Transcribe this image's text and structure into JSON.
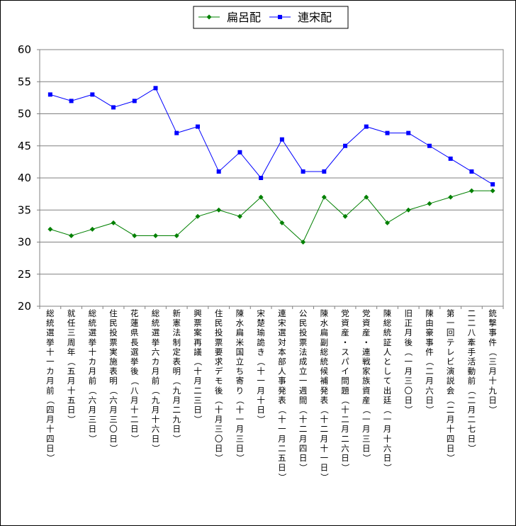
{
  "chart_data": {
    "type": "line",
    "title": "",
    "xlabel": "",
    "ylabel": "",
    "ylim": [
      20,
      60
    ],
    "yticks": [
      20,
      25,
      30,
      35,
      40,
      45,
      50,
      55,
      60
    ],
    "grid": "horizontal",
    "legend": "top",
    "categories": [
      "総統選挙十一カ月前（四月十四日）",
      "就任三周年（五月十五日）",
      "総統選挙十カ月前（六月三日）",
      "住民投票実施表明（六月三〇日）",
      "花蓮県長選挙後（八月十二日）",
      "総統選挙六カ月前（九月十六日）",
      "新憲法制定表明（九月二九日）",
      "興票案再議（十月二三日）",
      "住民投票要求デモ後（十月三〇日）",
      "陳水扁米国立ち寄り（十一月三日）",
      "宋楚瑜詭き（十一月十日）",
      "連宋選対本部人事発表（十一月二五日）",
      "公民投票法成立一週間（十二月四日）",
      "陳水扁副総統候補発表（十二月十一日）",
      "党資産・スパイ問題（十二月二六日）",
      "党資産・連戦家族資産（一月三日）",
      "陳総統証人として出廷（一月十六日）",
      "旧正月後（一月三〇日）",
      "陳由豪事件（二月六日）",
      "第一回テレビ演説会（二月十四日）",
      "二二八牽手活動前（二月二七日）",
      "銃撃事件（三月十九日）"
    ],
    "series": [
      {
        "name": "扁呂配",
        "color": "#008000",
        "marker": "diamond",
        "values": [
          32,
          31,
          32,
          33,
          31,
          31,
          31,
          34,
          35,
          34,
          37,
          33,
          30,
          37,
          34,
          37,
          33,
          35,
          36,
          37,
          38,
          38
        ]
      },
      {
        "name": "連宋配",
        "color": "#0000ff",
        "marker": "square",
        "values": [
          53,
          52,
          53,
          51,
          52,
          54,
          47,
          48,
          41,
          44,
          40,
          46,
          41,
          41,
          45,
          48,
          47,
          47,
          45,
          43,
          41,
          39
        ]
      }
    ]
  }
}
